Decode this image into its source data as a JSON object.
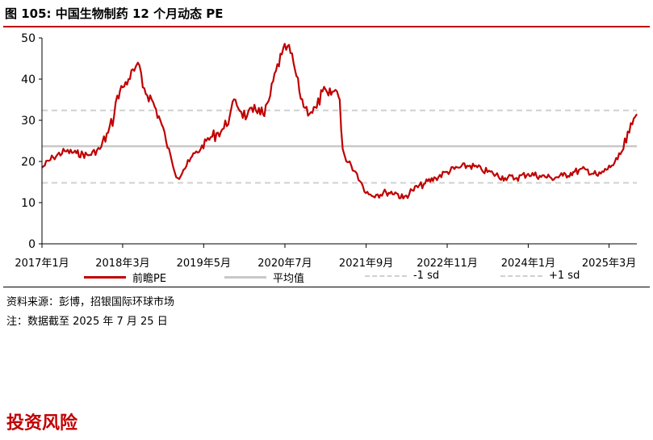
{
  "header": {
    "title": "图 105: 中国生物制药 12 个月动态 PE"
  },
  "chart_data": {
    "type": "line",
    "ylim": [
      0,
      50
    ],
    "yticks": [
      0,
      10,
      20,
      30,
      40,
      50
    ],
    "x_date_range": [
      "2017-01-01",
      "2025-07-25"
    ],
    "xtick_labels": [
      {
        "label": "2017年1月",
        "date": "2017-01-01"
      },
      {
        "label": "2018年3月",
        "date": "2018-03-01"
      },
      {
        "label": "2019年5月",
        "date": "2019-05-01"
      },
      {
        "label": "2020年7月",
        "date": "2020-07-01"
      },
      {
        "label": "2021年9月",
        "date": "2021-09-01"
      },
      {
        "label": "2022年11月",
        "date": "2022-11-01"
      },
      {
        "label": "2024年1月",
        "date": "2024-01-01"
      },
      {
        "label": "2025年3月",
        "date": "2025-03-01"
      }
    ],
    "series": [
      {
        "name": "前瞻PE",
        "color": "#c00000",
        "points": [
          [
            "2017-01-01",
            18.5
          ],
          [
            "2017-03-01",
            21
          ],
          [
            "2017-05-01",
            22.5
          ],
          [
            "2017-07-01",
            22
          ],
          [
            "2017-09-01",
            21.5
          ],
          [
            "2017-11-01",
            23
          ],
          [
            "2017-12-15",
            27
          ],
          [
            "2018-01-15",
            31
          ],
          [
            "2018-02-01",
            36
          ],
          [
            "2018-03-01",
            38
          ],
          [
            "2018-04-01",
            40
          ],
          [
            "2018-05-01",
            42
          ],
          [
            "2018-05-20",
            44
          ],
          [
            "2018-06-15",
            38
          ],
          [
            "2018-08-01",
            35
          ],
          [
            "2018-09-15",
            30
          ],
          [
            "2018-10-15",
            25
          ],
          [
            "2018-11-15",
            20
          ],
          [
            "2018-12-15",
            16
          ],
          [
            "2019-01-15",
            18
          ],
          [
            "2019-02-15",
            20
          ],
          [
            "2019-03-15",
            22
          ],
          [
            "2019-04-15",
            23
          ],
          [
            "2019-05-15",
            25
          ],
          [
            "2019-06-15",
            26
          ],
          [
            "2019-07-15",
            27
          ],
          [
            "2019-08-15",
            28
          ],
          [
            "2019-09-15",
            31
          ],
          [
            "2019-10-15",
            35
          ],
          [
            "2019-11-15",
            32
          ],
          [
            "2019-12-15",
            31
          ],
          [
            "2020-01-15",
            32
          ],
          [
            "2020-02-15",
            33
          ],
          [
            "2020-03-15",
            31
          ],
          [
            "2020-04-15",
            36
          ],
          [
            "2020-05-15",
            42
          ],
          [
            "2020-06-15",
            46
          ],
          [
            "2020-07-15",
            48
          ],
          [
            "2020-08-15",
            44
          ],
          [
            "2020-09-15",
            37
          ],
          [
            "2020-10-15",
            33
          ],
          [
            "2020-11-15",
            32
          ],
          [
            "2020-12-15",
            33
          ],
          [
            "2021-01-15",
            37
          ],
          [
            "2021-02-15",
            36
          ],
          [
            "2021-03-15",
            37
          ],
          [
            "2021-04-01",
            37
          ],
          [
            "2021-04-15",
            35
          ],
          [
            "2021-05-01",
            23
          ],
          [
            "2021-05-20",
            20
          ],
          [
            "2021-06-15",
            19
          ],
          [
            "2021-07-15",
            17
          ],
          [
            "2021-08-15",
            14
          ],
          [
            "2021-09-15",
            12
          ],
          [
            "2021-11-01",
            12
          ],
          [
            "2021-12-15",
            12.5
          ],
          [
            "2022-02-01",
            12.5
          ],
          [
            "2022-03-15",
            11
          ],
          [
            "2022-05-01",
            13
          ],
          [
            "2022-07-01",
            14.5
          ],
          [
            "2022-09-01",
            16
          ],
          [
            "2022-11-01",
            17.5
          ],
          [
            "2023-01-01",
            18.5
          ],
          [
            "2023-03-01",
            19
          ],
          [
            "2023-05-01",
            18
          ],
          [
            "2023-07-01",
            17
          ],
          [
            "2023-09-01",
            16
          ],
          [
            "2023-11-01",
            16
          ],
          [
            "2024-01-01",
            17
          ],
          [
            "2024-03-01",
            16.5
          ],
          [
            "2024-05-01",
            16
          ],
          [
            "2024-07-01",
            16.5
          ],
          [
            "2024-09-01",
            17.5
          ],
          [
            "2024-11-01",
            18
          ],
          [
            "2025-01-01",
            16.5
          ],
          [
            "2025-02-01",
            17.5
          ],
          [
            "2025-03-15",
            19
          ],
          [
            "2025-04-15",
            20.5
          ],
          [
            "2025-05-15",
            23
          ],
          [
            "2025-06-15",
            27
          ],
          [
            "2025-07-01",
            29
          ],
          [
            "2025-07-25",
            31.5
          ]
        ]
      },
      {
        "name": "平均值",
        "value": 23.7,
        "color": "#c8c8c8",
        "style": "solid"
      },
      {
        "name": "-1 sd",
        "value": 14.8,
        "color": "#d0d0d0",
        "style": "dashed"
      },
      {
        "name": "+1 sd",
        "value": 32.4,
        "color": "#d0d0d0",
        "style": "dashed"
      }
    ],
    "legend_position": "bottom"
  },
  "notes": {
    "source": "资料来源：彭博，招银国际环球市场",
    "remark": "注：数据截至 2025 年 7 月 25 日"
  },
  "section_title": "投资风险"
}
